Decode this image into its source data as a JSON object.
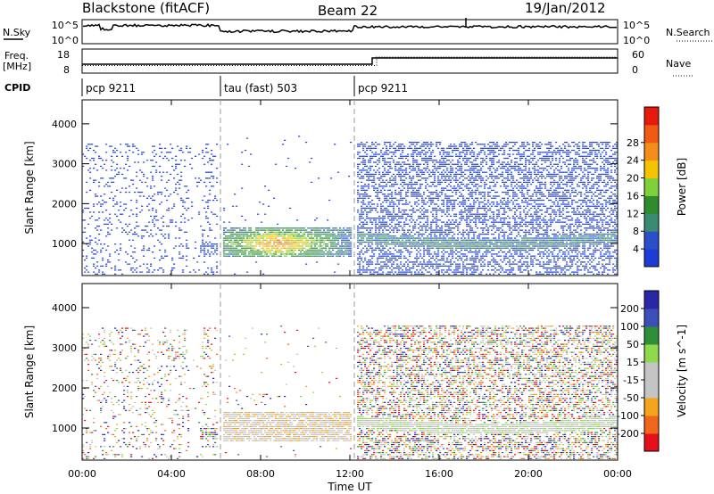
{
  "header": {
    "station": "Blackstone (fitACF)",
    "beam": "Beam 22",
    "date": "19/Jan/2012"
  },
  "strip_labels": {
    "nsky": "N.Sky",
    "nsearch": "N.Search",
    "freq": "Freq.",
    "freq_unit": "[MHz]",
    "nave": "Nave",
    "cpid": "CPID"
  },
  "strip_ticks": {
    "nsky_top": "10^5",
    "nsky_bottom": "10^0",
    "nsearch_top": "10^5",
    "nsearch_bottom": "10^0",
    "freq_top": "18",
    "freq_bottom": "8",
    "nave_top": "60",
    "nave_bottom": "0"
  },
  "cpid_segments": [
    {
      "label": "pcp 9211",
      "start_hour": 0
    },
    {
      "label": "tau (fast) 503",
      "start_hour": 6.2
    },
    {
      "label": "pcp 9211",
      "start_hour": 12.2
    }
  ],
  "colors": {
    "power_scale": [
      "#1f3bd6",
      "#2a4fc8",
      "#3a8a74",
      "#2e8b2e",
      "#7fd13b",
      "#f5c400",
      "#f58d1a",
      "#f05a14",
      "#e61a0a"
    ],
    "velocity_scale": [
      "#e4101a",
      "#f0661a",
      "#f5a51c",
      "#c4c4c4",
      "#c4c4c4",
      "#8fd94a",
      "#2f8e3a",
      "#3c4fb8",
      "#2a26a8"
    ]
  },
  "chart_data": [
    {
      "type": "heatmap",
      "title": "",
      "xlabel": "",
      "ylabel": "Slant Range [km]",
      "xlim": [
        0,
        24
      ],
      "ylim": [
        200,
        4600
      ],
      "x_ticks": [
        0,
        4,
        8,
        12,
        16,
        20,
        24
      ],
      "y_ticks": [
        1000,
        2000,
        3000,
        4000
      ],
      "y_tick_labels": [
        "1000",
        "2000",
        "3000",
        "4000"
      ],
      "colorbar": {
        "label": "Power [dB]",
        "ticks": [
          "4",
          "8",
          "12",
          "16",
          "20",
          "24",
          "28"
        ],
        "range": [
          0,
          32
        ]
      },
      "features": [
        {
          "name": "sparse scatter",
          "x_range": [
            0,
            6
          ],
          "y_range": [
            200,
            3500
          ],
          "value": 5
        },
        {
          "name": "strong echo region",
          "x_range": [
            6.2,
            12
          ],
          "y_range": [
            600,
            1400
          ],
          "value": 18
        },
        {
          "name": "backscatter band",
          "x_range": [
            12.2,
            24
          ],
          "y_range": [
            950,
            1400
          ],
          "value": 10
        }
      ]
    },
    {
      "type": "heatmap",
      "title": "",
      "xlabel": "Time UT",
      "ylabel": "Slant Range [km]",
      "xlim": [
        0,
        24
      ],
      "ylim": [
        200,
        4600
      ],
      "x_ticks": [
        0,
        4,
        8,
        12,
        16,
        20,
        24
      ],
      "x_tick_labels": [
        "00:00",
        "04:00",
        "08:00",
        "12:00",
        "16:00",
        "20:00",
        "00:00"
      ],
      "y_ticks": [
        1000,
        2000,
        3000,
        4000
      ],
      "y_tick_labels": [
        "1000",
        "2000",
        "3000",
        "4000"
      ],
      "colorbar": {
        "label": "Velocity [m s^-1]",
        "ticks": [
          "-200",
          "-100",
          "-50",
          "-15",
          "15",
          "50",
          "100",
          "200"
        ],
        "range": [
          -250,
          250
        ]
      },
      "features": [
        {
          "name": "mixed velocity scatter",
          "x_range": [
            0,
            6
          ],
          "y_range": [
            200,
            3500
          ],
          "value": 0
        },
        {
          "name": "ground scatter",
          "x_range": [
            6.2,
            12
          ],
          "y_range": [
            600,
            1400
          ],
          "value": 0
        },
        {
          "name": "ground scatter band",
          "x_range": [
            12.2,
            24
          ],
          "y_range": [
            950,
            1400
          ],
          "value": 0
        }
      ]
    }
  ]
}
